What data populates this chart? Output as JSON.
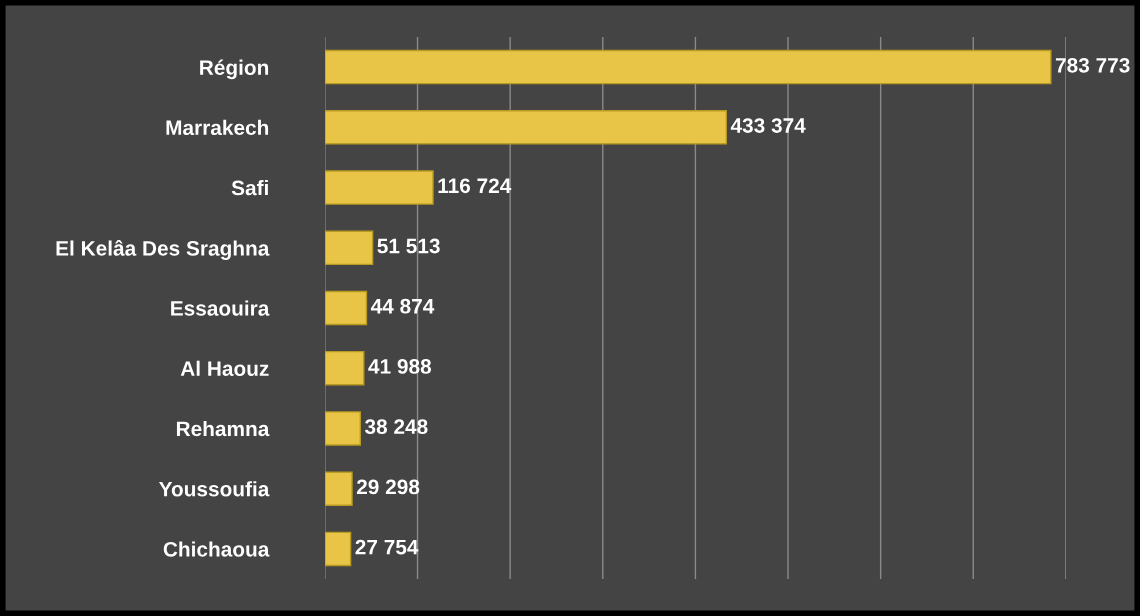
{
  "chart_data": {
    "type": "bar",
    "orientation": "horizontal",
    "categories": [
      "Région",
      "Marrakech",
      "Safi",
      "El Kelâa Des Sraghna",
      "Essaouira",
      "Al Haouz",
      "Rehamna",
      "Youssoufia",
      "Chichaoua"
    ],
    "values": [
      783773,
      433374,
      116724,
      51513,
      44874,
      41988,
      38248,
      29298,
      27754
    ],
    "value_labels": [
      "783 773",
      "433 374",
      "116 724",
      "51 513",
      "44 874",
      "41 988",
      "38 248",
      "29 298",
      "27 754"
    ],
    "color": "#e8c547",
    "xlim": [
      0,
      800000
    ],
    "xticks": [
      {
        "value": 0,
        "label": null
      },
      {
        "value": 100000,
        "label": null
      },
      {
        "value": 200000,
        "label": null
      },
      {
        "value": 300000,
        "label": null
      },
      {
        "value": 400000,
        "label": null
      },
      {
        "value": 500000,
        "label": null
      },
      {
        "value": 600000,
        "label": null
      },
      {
        "value": 700000,
        "label": null
      },
      {
        "value": 800000,
        "label": null
      }
    ],
    "grid": "x",
    "tick_labels": "y"
  }
}
